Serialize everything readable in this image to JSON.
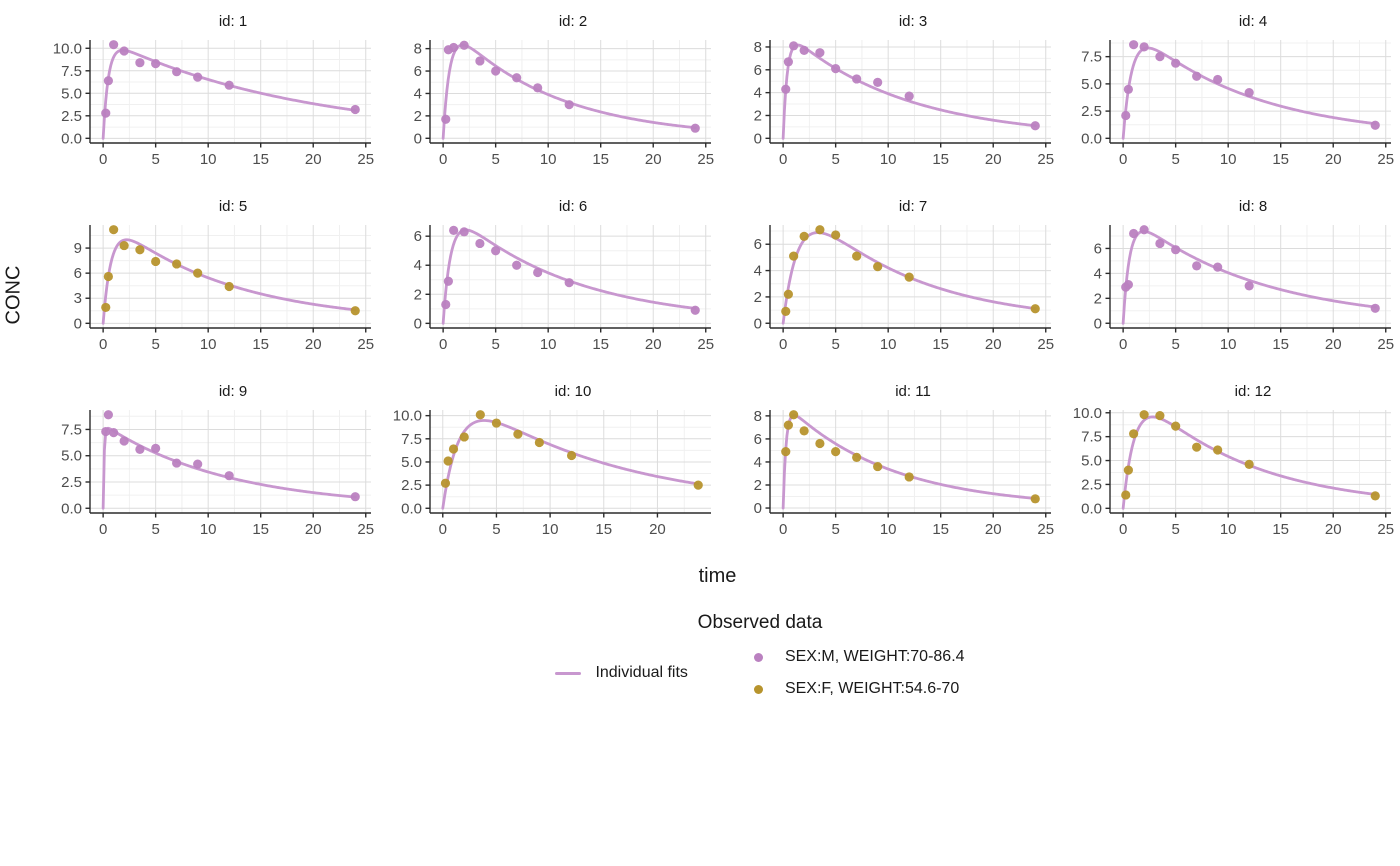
{
  "figure": {
    "ylabel": "CONC",
    "xlabel": "time",
    "legend": {
      "title": "Observed data",
      "line_entry": {
        "label": "Individual fits"
      },
      "point_entries": [
        {
          "label": "SEX:M, WEIGHT:70-86.4",
          "group": "M"
        },
        {
          "label": "SEX:F, WEIGHT:54.6-70",
          "group": "F"
        }
      ]
    }
  },
  "chart_data": {
    "type": "scatter",
    "subtype": "faceted concentration-time profiles with individual fit lines (3x4 small multiples)",
    "title": "",
    "xlabel": "time",
    "ylabel": "CONC",
    "legend_title": "Observed data",
    "legend_position": "bottom",
    "grid": true,
    "colors": {
      "fit_line": "#C897CF",
      "M": "#BA81C0",
      "F": "#B7942D"
    },
    "fit_model": "C(t) = A*(exp(-ke*t) - exp(-ka*t))",
    "facets": [
      {
        "label": "id: 1",
        "group": "M",
        "t": [
          0.25,
          0.5,
          1,
          2,
          3.5,
          5,
          7,
          9,
          12,
          24
        ],
        "conc": [
          2.8,
          6.4,
          10.4,
          9.7,
          8.4,
          8.3,
          7.4,
          6.8,
          5.9,
          3.2
        ],
        "fit": {
          "A": 11.1,
          "ka": 2.0,
          "ke": 0.053
        },
        "x_ticks": [
          0,
          5,
          10,
          15,
          20,
          25
        ],
        "x_tick_labels": [
          "0",
          "5",
          "10",
          "15",
          "20",
          "25"
        ],
        "y_ticks": [
          0,
          2.5,
          5,
          7.5,
          10
        ],
        "y_tick_labels": [
          "0.0",
          "2.5",
          "5.0",
          "7.5",
          "10.0"
        ],
        "xlim": [
          -1.25,
          25.5
        ],
        "ylim": [
          -0.52,
          10.92
        ]
      },
      {
        "label": "id: 2",
        "group": "M",
        "t": [
          0.25,
          0.5,
          1,
          2,
          3.5,
          5,
          7,
          9,
          12,
          24
        ],
        "conc": [
          1.7,
          7.9,
          8.1,
          8.3,
          6.9,
          6.0,
          5.4,
          4.5,
          3.0,
          0.9
        ],
        "fit": {
          "A": 10.7,
          "ka": 1.6,
          "ke": 0.101
        },
        "x_ticks": [
          0,
          5,
          10,
          15,
          20,
          25
        ],
        "x_tick_labels": [
          "0",
          "5",
          "10",
          "15",
          "20",
          "25"
        ],
        "y_ticks": [
          0,
          2,
          4,
          6,
          8
        ],
        "y_tick_labels": [
          "0",
          "2",
          "4",
          "6",
          "8"
        ],
        "xlim": [
          -1.25,
          25.5
        ],
        "ylim": [
          -0.42,
          8.77
        ]
      },
      {
        "label": "id: 3",
        "group": "M",
        "t": [
          0.25,
          0.5,
          1,
          2,
          3.5,
          5,
          7,
          9,
          12,
          24
        ],
        "conc": [
          4.3,
          6.7,
          8.1,
          7.7,
          7.5,
          6.1,
          5.2,
          4.9,
          3.7,
          1.1
        ],
        "fit": {
          "A": 9.6,
          "ka": 2.5,
          "ke": 0.09
        },
        "x_ticks": [
          0,
          5,
          10,
          15,
          20,
          25
        ],
        "x_tick_labels": [
          "0",
          "5",
          "10",
          "15",
          "20",
          "25"
        ],
        "y_ticks": [
          0,
          2,
          4,
          6,
          8
        ],
        "y_tick_labels": [
          "0",
          "2",
          "4",
          "6",
          "8"
        ],
        "xlim": [
          -1.25,
          25.5
        ],
        "ylim": [
          -0.41,
          8.61
        ]
      },
      {
        "label": "id: 4",
        "group": "M",
        "t": [
          0.25,
          0.5,
          1,
          2,
          3.5,
          5,
          7,
          9,
          12,
          24
        ],
        "conc": [
          2.1,
          4.5,
          8.6,
          8.4,
          7.5,
          6.9,
          5.7,
          5.4,
          4.2,
          1.2
        ],
        "fit": {
          "A": 11.0,
          "ka": 1.2,
          "ke": 0.0876
        },
        "x_ticks": [
          0,
          5,
          10,
          15,
          20,
          25
        ],
        "x_tick_labels": [
          "0",
          "5",
          "10",
          "15",
          "20",
          "25"
        ],
        "y_ticks": [
          0,
          2.5,
          5,
          7.5
        ],
        "y_tick_labels": [
          "0.0",
          "2.5",
          "5.0",
          "7.5"
        ],
        "xlim": [
          -1.25,
          25.5
        ],
        "ylim": [
          -0.43,
          9.03
        ]
      },
      {
        "label": "id: 5",
        "group": "F",
        "t": [
          0.25,
          0.5,
          1,
          2,
          3.5,
          5,
          7,
          9,
          12,
          24
        ],
        "conc": [
          1.9,
          5.6,
          11.2,
          9.3,
          8.8,
          7.4,
          7.1,
          6.0,
          4.4,
          1.5
        ],
        "fit": {
          "A": 13.0,
          "ka": 1.3,
          "ke": 0.087
        },
        "x_ticks": [
          0,
          5,
          10,
          15,
          20,
          25
        ],
        "x_tick_labels": [
          "0",
          "5",
          "10",
          "15",
          "20",
          "25"
        ],
        "y_ticks": [
          0,
          3,
          6,
          9
        ],
        "y_tick_labels": [
          "0",
          "3",
          "6",
          "9"
        ],
        "xlim": [
          -1.25,
          25.5
        ],
        "ylim": [
          -0.56,
          11.76
        ]
      },
      {
        "label": "id: 6",
        "group": "M",
        "t": [
          0.25,
          0.5,
          1,
          2,
          3.5,
          5,
          7,
          9,
          12,
          24
        ],
        "conc": [
          1.3,
          2.9,
          6.4,
          6.3,
          5.5,
          5.0,
          4.0,
          3.5,
          2.8,
          0.9
        ],
        "fit": {
          "A": 8.3,
          "ka": 1.35,
          "ke": 0.087
        },
        "x_ticks": [
          0,
          5,
          10,
          15,
          20,
          25
        ],
        "x_tick_labels": [
          "0",
          "5",
          "10",
          "15",
          "20",
          "25"
        ],
        "y_ticks": [
          0,
          2,
          4,
          6
        ],
        "y_tick_labels": [
          "0",
          "2",
          "4",
          "6"
        ],
        "xlim": [
          -1.25,
          25.5
        ],
        "ylim": [
          -0.32,
          6.77
        ]
      },
      {
        "label": "id: 7",
        "group": "F",
        "t": [
          0.25,
          0.5,
          1,
          2,
          3.5,
          5,
          7,
          9,
          12,
          24
        ],
        "conc": [
          0.9,
          2.2,
          5.1,
          6.6,
          7.1,
          6.7,
          5.1,
          4.3,
          3.5,
          1.1
        ],
        "fit": {
          "A": 10.9,
          "ka": 0.7,
          "ke": 0.095
        },
        "x_ticks": [
          0,
          5,
          10,
          15,
          20,
          25
        ],
        "x_tick_labels": [
          "0",
          "5",
          "10",
          "15",
          "20",
          "25"
        ],
        "y_ticks": [
          0,
          2,
          4,
          6
        ],
        "y_tick_labels": [
          "0",
          "2",
          "4",
          "6"
        ],
        "xlim": [
          -1.25,
          25.5
        ],
        "ylim": [
          -0.36,
          7.46
        ]
      },
      {
        "label": "id: 8",
        "group": "M",
        "t": [
          0.25,
          0.5,
          1,
          2,
          3.5,
          5,
          7,
          9,
          12,
          24
        ],
        "conc": [
          2.9,
          3.1,
          7.2,
          7.5,
          6.4,
          5.9,
          4.6,
          4.5,
          3.0,
          1.2
        ],
        "fit": {
          "A": 9.1,
          "ka": 1.6,
          "ke": 0.081
        },
        "x_ticks": [
          0,
          5,
          10,
          15,
          20,
          25
        ],
        "x_tick_labels": [
          "0",
          "5",
          "10",
          "15",
          "20",
          "25"
        ],
        "y_ticks": [
          0,
          2,
          4,
          6
        ],
        "y_tick_labels": [
          "0",
          "2",
          "4",
          "6"
        ],
        "xlim": [
          -1.25,
          25.5
        ],
        "ylim": [
          -0.38,
          7.88
        ]
      },
      {
        "label": "id: 9",
        "group": "M",
        "t": [
          0.25,
          0.5,
          1,
          2,
          3.5,
          5,
          7,
          9,
          12,
          24
        ],
        "conc": [
          7.3,
          8.9,
          7.2,
          6.4,
          5.6,
          5.7,
          4.3,
          4.2,
          3.1,
          1.1
        ],
        "fit": {
          "A": 8.0,
          "ka": 10.0,
          "ke": 0.084
        },
        "x_ticks": [
          0,
          5,
          10,
          15,
          20,
          25
        ],
        "x_tick_labels": [
          "0",
          "5",
          "10",
          "15",
          "20",
          "25"
        ],
        "y_ticks": [
          0,
          2.5,
          5,
          7.5
        ],
        "y_tick_labels": [
          "0.0",
          "2.5",
          "5.0",
          "7.5"
        ],
        "xlim": [
          -1.25,
          25.5
        ],
        "ylim": [
          -0.45,
          9.35
        ]
      },
      {
        "label": "id: 10",
        "group": "F",
        "t": [
          0.25,
          0.5,
          1,
          2,
          3.5,
          5,
          7,
          9,
          12,
          23.8
        ],
        "conc": [
          2.7,
          5.1,
          6.4,
          7.7,
          10.1,
          9.2,
          8.0,
          7.1,
          5.7,
          2.5
        ],
        "fit": {
          "A": 13.9,
          "ka": 0.65,
          "ke": 0.07
        },
        "x_ticks": [
          0,
          5,
          10,
          15,
          20
        ],
        "x_tick_labels": [
          "0",
          "5",
          "10",
          "15",
          "20"
        ],
        "y_ticks": [
          0,
          2.5,
          5,
          7.5,
          10
        ],
        "y_tick_labels": [
          "0.0",
          "2.5",
          "5.0",
          "7.5",
          "10.0"
        ],
        "xlim": [
          -1.19,
          24.99
        ],
        "ylim": [
          -0.51,
          10.61
        ]
      },
      {
        "label": "id: 11",
        "group": "F",
        "t": [
          0.25,
          0.5,
          1,
          2,
          3.5,
          5,
          7,
          9,
          12,
          24
        ],
        "conc": [
          4.9,
          7.2,
          8.1,
          6.7,
          5.6,
          4.9,
          4.4,
          3.6,
          2.7,
          0.8
        ],
        "fit": {
          "A": 9.2,
          "ka": 3.5,
          "ke": 0.1
        },
        "x_ticks": [
          0,
          5,
          10,
          15,
          20,
          25
        ],
        "x_tick_labels": [
          "0",
          "5",
          "10",
          "15",
          "20",
          "25"
        ],
        "y_ticks": [
          0,
          2,
          4,
          6,
          8
        ],
        "y_tick_labels": [
          "0",
          "2",
          "4",
          "6",
          "8"
        ],
        "xlim": [
          -1.25,
          25.5
        ],
        "ylim": [
          -0.43,
          8.51
        ]
      },
      {
        "label": "id: 12",
        "group": "F",
        "t": [
          0.25,
          0.5,
          1,
          2,
          3.5,
          5,
          7,
          9,
          12,
          24
        ],
        "conc": [
          1.4,
          4.0,
          7.8,
          9.8,
          9.7,
          8.6,
          6.4,
          6.1,
          4.6,
          1.3
        ],
        "fit": {
          "A": 13.9,
          "ka": 0.9,
          "ke": 0.094
        },
        "x_ticks": [
          0,
          5,
          10,
          15,
          20,
          25
        ],
        "x_tick_labels": [
          "0",
          "5",
          "10",
          "15",
          "20",
          "25"
        ],
        "y_ticks": [
          0,
          2.5,
          5,
          7.5,
          10
        ],
        "y_tick_labels": [
          "0.0",
          "2.5",
          "5.0",
          "7.5",
          "10.0"
        ],
        "xlim": [
          -1.25,
          25.5
        ],
        "ylim": [
          -0.49,
          10.29
        ]
      }
    ]
  }
}
